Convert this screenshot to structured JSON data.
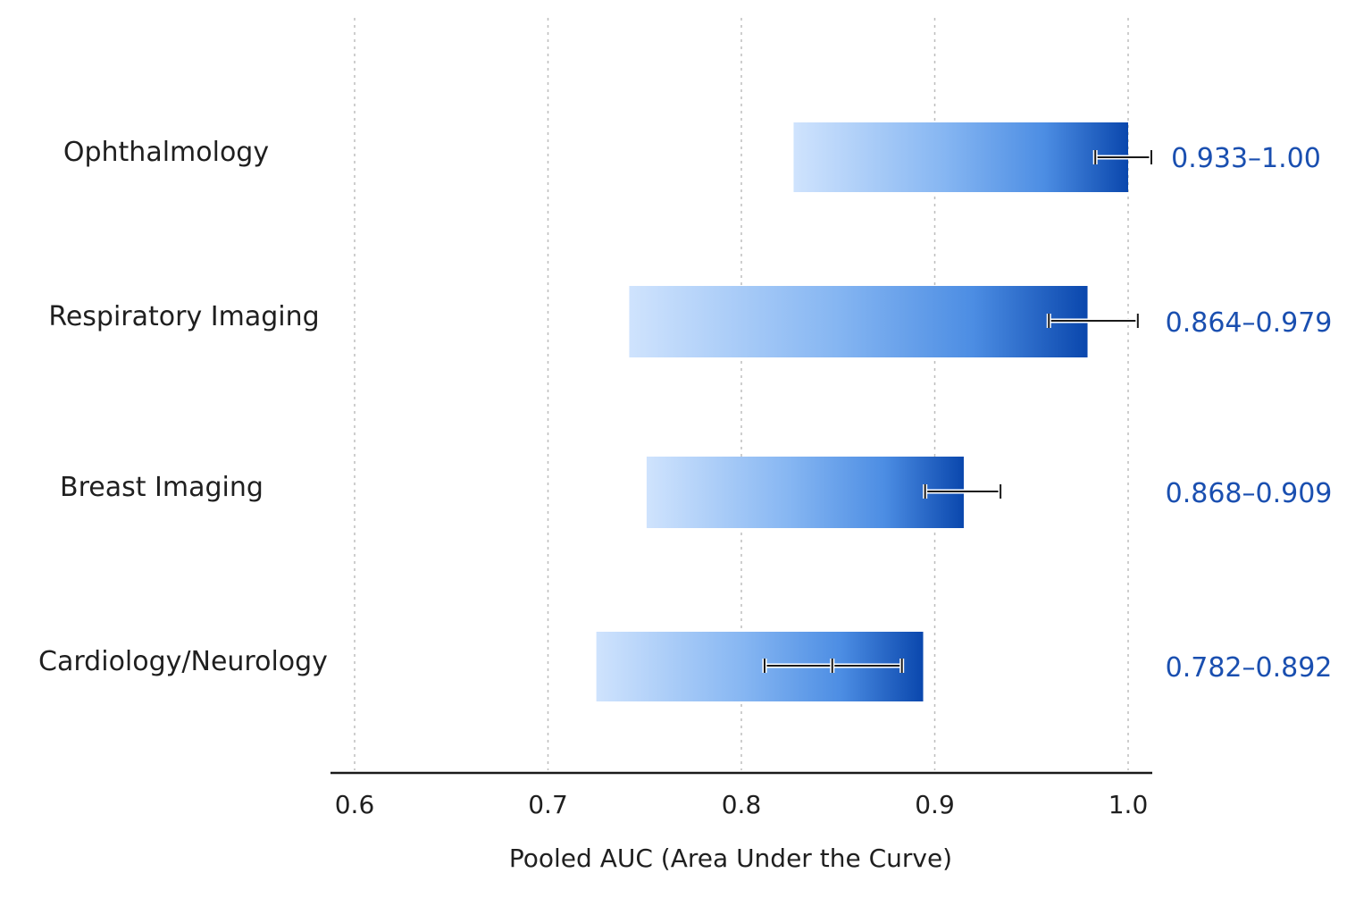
{
  "chart_data": {
    "type": "bar",
    "orientation": "horizontal",
    "xlabel": "Pooled AUC (Area Under the Curve)",
    "xlim": [
      0.6,
      1.0
    ],
    "xticks": [
      "0.6",
      "0.7",
      "0.8",
      "0.9",
      "1.0"
    ],
    "grid": "vertical dotted",
    "categories": [
      "Ophthalmology",
      "Respiratory Imaging",
      "Breast Imaging",
      "Cardiology/Neurology"
    ],
    "bars": [
      {
        "start": 0.827,
        "end": 1.0
      },
      {
        "start": 0.742,
        "end": 0.979
      },
      {
        "start": 0.751,
        "end": 0.915
      },
      {
        "start": 0.725,
        "end": 0.894
      }
    ],
    "error_bars": [
      {
        "low": 0.983,
        "high": 1.012,
        "mid": null
      },
      {
        "low": 0.959,
        "high": 1.005,
        "mid": null
      },
      {
        "low": 0.895,
        "high": 0.934,
        "mid": null
      },
      {
        "low": 0.812,
        "high": 0.883,
        "mid": 0.847
      }
    ],
    "range_labels": [
      "0.933–1.00",
      "0.864–0.979",
      "0.868–0.909",
      "0.782–0.892"
    ],
    "colors": {
      "bar_start": "#cfe3fd",
      "bar_mid": "#5b9be8",
      "bar_end": "#0a47ad",
      "range_text": "#1a4fb0",
      "grid": "#bdbdbd",
      "axis": "#1a1a1a"
    }
  }
}
